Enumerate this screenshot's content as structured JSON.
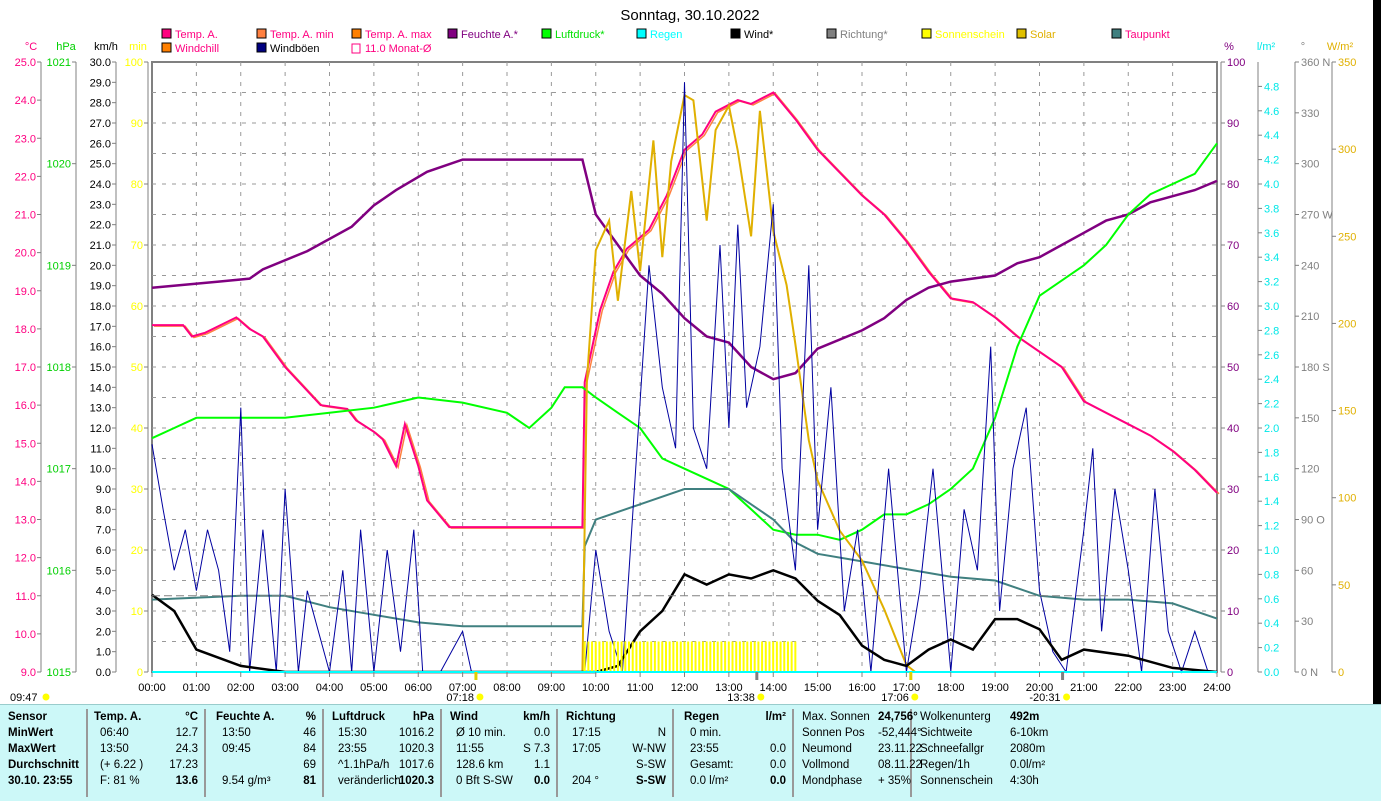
{
  "title": "Sonntag, 30.10.2022",
  "legend": [
    {
      "label": "Temp. A.",
      "color": "#ff0080",
      "text": "#ff0080"
    },
    {
      "label": "Temp. A. min",
      "color": "#ff8040",
      "text": "#ff0080"
    },
    {
      "label": "Temp. A. max",
      "color": "#ff8000",
      "text": "#ff0080"
    },
    {
      "label": "Feuchte A.*",
      "color": "#800080",
      "text": "#800080"
    },
    {
      "label": "Luftdruck*",
      "color": "#00ff00",
      "text": "#00e000"
    },
    {
      "label": "Regen",
      "color": "#00ffff",
      "text": "#00ffff"
    },
    {
      "label": "Wind*",
      "color": "#000000",
      "text": "#000000"
    },
    {
      "label": "Richtung*",
      "color": "#808080",
      "text": "#808080"
    },
    {
      "label": "Sonnenschein",
      "color": "#ffff00",
      "text": "#ffff00"
    },
    {
      "label": "Solar",
      "color": "#e0c000",
      "text": "#e0b000"
    },
    {
      "label": "Taupunkt",
      "color": "#408080",
      "text": "#ff0080"
    },
    {
      "label": "Windchill",
      "color": "#ff8000",
      "text": "#ff0080"
    },
    {
      "label": "Windböen",
      "color": "#000080",
      "text": "#000000"
    },
    {
      "label": "11.0 Monat-Ø",
      "color": "#ff0080",
      "text": "#ff0080"
    }
  ],
  "axes": {
    "temp": {
      "unit": "°C",
      "ticks": [
        "9.0",
        "10.0",
        "11.0",
        "12.0",
        "13.0",
        "14.0",
        "15.0",
        "16.0",
        "17.0",
        "18.0",
        "19.0",
        "20.0",
        "21.0",
        "22.0",
        "23.0",
        "24.0",
        "25.0"
      ],
      "color": "#ff0080"
    },
    "press": {
      "unit": "hPa",
      "ticks": [
        "1015",
        "1016",
        "1017",
        "1018",
        "1019",
        "1020",
        "1021"
      ],
      "color": "#00d000"
    },
    "wind": {
      "unit": "km/h",
      "ticks": [
        "0.0",
        "1.0",
        "2.0",
        "3.0",
        "4.0",
        "5.0",
        "6.0",
        "7.0",
        "8.0",
        "9.0",
        "10.0",
        "11.0",
        "12.0",
        "13.0",
        "14.0",
        "15.0",
        "16.0",
        "17.0",
        "18.0",
        "19.0",
        "20.0",
        "21.0",
        "22.0",
        "23.0",
        "24.0",
        "25.0",
        "26.0",
        "27.0",
        "28.0",
        "29.0",
        "30.0"
      ],
      "color": "#000000"
    },
    "min": {
      "unit": "min",
      "ticks": [
        "0",
        "10",
        "20",
        "30",
        "40",
        "50",
        "60",
        "70",
        "80",
        "90",
        "100"
      ],
      "color": "#ffff00"
    },
    "hum": {
      "unit": "%",
      "ticks": [
        "0",
        "10",
        "20",
        "30",
        "40",
        "50",
        "60",
        "70",
        "80",
        "90",
        "100"
      ],
      "color": "#800080"
    },
    "rain": {
      "unit": "l/m²",
      "ticks": [
        "0.0",
        "0.2",
        "0.4",
        "0.6",
        "0.8",
        "1.0",
        "1.2",
        "1.4",
        "1.6",
        "1.8",
        "2.0",
        "2.2",
        "2.4",
        "2.6",
        "2.8",
        "3.0",
        "3.2",
        "3.4",
        "3.6",
        "3.8",
        "4.0",
        "4.2",
        "4.4",
        "4.6",
        "4.8"
      ],
      "color": "#00e8e8"
    },
    "dir": {
      "unit": "°",
      "ticks": [
        "0    N",
        "30",
        "60",
        "90  O",
        "120",
        "150",
        "180 S",
        "210",
        "240",
        "270 W",
        "300",
        "330",
        "360 N"
      ],
      "color": "#808080"
    },
    "solar": {
      "unit": "W/m²",
      "ticks": [
        "0",
        "50",
        "100",
        "150",
        "200",
        "250",
        "300",
        "350"
      ],
      "color": "#e0b000"
    }
  },
  "x_ticks": [
    "00:00",
    "01:00",
    "02:00",
    "03:00",
    "04:00",
    "05:00",
    "06:00",
    "07:00",
    "08:00",
    "09:00",
    "10:00",
    "11:00",
    "12:00",
    "13:00",
    "14:00",
    "15:00",
    "16:00",
    "17:00",
    "18:00",
    "19:00",
    "20:00",
    "21:00",
    "22:00",
    "23:00",
    "24:00"
  ],
  "markers": [
    {
      "label": "09:47",
      "h": -2.6
    },
    {
      "label": "07:18",
      "h": 7.3
    },
    {
      "label": "13:38",
      "h": 13.63
    },
    {
      "label": "17:06",
      "h": 17.1
    },
    {
      "label": "-20:31",
      "h": 20.52
    }
  ],
  "chart_data": {
    "type": "line",
    "title": "Sonntag, 30.10.2022",
    "xlabel": "",
    "xlim": [
      0,
      24
    ],
    "series": [
      {
        "name": "Temp. A.",
        "axis": "temp",
        "ylim": [
          9,
          25
        ],
        "color": "#ff0080",
        "x": [
          0,
          0.7,
          0.9,
          1.2,
          1.9,
          2.2,
          2.5,
          3,
          3.4,
          3.8,
          4.4,
          4.6,
          5,
          5.2,
          5.5,
          5.7,
          6,
          6.2,
          6.7,
          9.7,
          9.75,
          10.1,
          10.4,
          10.7,
          11.2,
          11.6,
          12,
          12.4,
          12.7,
          13.2,
          13.5,
          14,
          14.5,
          15,
          15.5,
          16,
          16.5,
          17,
          17.5,
          18,
          18.5,
          19,
          19.5,
          20,
          20.5,
          21,
          21.5,
          22,
          22.5,
          23,
          23.5,
          24
        ],
        "y": [
          18.1,
          18.1,
          17.8,
          17.9,
          18.3,
          18,
          17.8,
          17,
          16.5,
          16,
          15.9,
          15.6,
          15.3,
          15.1,
          14.4,
          15.5,
          14.4,
          13.5,
          12.8,
          12.8,
          16.6,
          18.5,
          19.5,
          20.1,
          20.6,
          21.5,
          22.7,
          23.1,
          23.7,
          24,
          23.9,
          24.2,
          23.5,
          22.7,
          22.1,
          21.5,
          21,
          20.3,
          19.5,
          18.8,
          18.7,
          18.3,
          17.8,
          17.4,
          17,
          16.1,
          15.8,
          15.5,
          15.2,
          14.8,
          14.3,
          13.7
        ]
      },
      {
        "name": "Feuchte A.*",
        "axis": "hum",
        "ylim": [
          0,
          100
        ],
        "color": "#800080",
        "x": [
          0,
          1.5,
          2.2,
          2.5,
          3.5,
          4.5,
          5,
          5.5,
          6.2,
          7,
          9.7,
          10,
          10.5,
          11,
          11.5,
          12,
          12.5,
          13,
          13.5,
          14,
          14.5,
          15,
          16,
          16.5,
          17,
          17.5,
          18,
          19,
          19.5,
          20,
          20.5,
          21,
          21.5,
          22,
          22.5,
          23,
          23.5,
          24
        ],
        "y": [
          63,
          64,
          64.5,
          66,
          69,
          73,
          76.5,
          79,
          82,
          84,
          84,
          75,
          70,
          65,
          62,
          58,
          55,
          54,
          50,
          48,
          49,
          53,
          56,
          58,
          61,
          63,
          64,
          65,
          67,
          68,
          70,
          72,
          74,
          75,
          77,
          78,
          79,
          80.5
        ]
      },
      {
        "name": "Luftdruck*",
        "axis": "press",
        "ylim": [
          1015,
          1021
        ],
        "color": "#00ff00",
        "x": [
          0,
          0.5,
          1,
          2,
          3,
          4,
          5,
          5.5,
          6,
          7,
          8,
          8.5,
          9,
          9.3,
          9.7,
          10,
          10.5,
          11,
          11.5,
          12,
          12.5,
          13,
          13.5,
          14,
          14.5,
          15,
          15.5,
          16,
          16.5,
          17,
          17.5,
          18,
          18.5,
          19,
          19.5,
          20,
          20.5,
          21,
          21.5,
          22,
          22.5,
          23,
          23.5,
          24
        ],
        "y": [
          1017.3,
          1017.4,
          1017.5,
          1017.5,
          1017.5,
          1017.55,
          1017.6,
          1017.65,
          1017.7,
          1017.65,
          1017.55,
          1017.4,
          1017.6,
          1017.8,
          1017.8,
          1017.7,
          1017.55,
          1017.4,
          1017.1,
          1017,
          1016.9,
          1016.8,
          1016.6,
          1016.4,
          1016.35,
          1016.35,
          1016.3,
          1016.4,
          1016.55,
          1016.55,
          1016.65,
          1016.8,
          1017,
          1017.5,
          1018.2,
          1018.7,
          1018.85,
          1019,
          1019.2,
          1019.5,
          1019.7,
          1019.8,
          1019.9,
          1020.2
        ]
      },
      {
        "name": "Taupunkt",
        "axis": "temp",
        "ylim": [
          9,
          25
        ],
        "color": "#408080",
        "x": [
          0,
          2,
          3,
          4,
          5,
          6,
          7,
          9.7,
          9.75,
          10,
          11,
          12,
          13,
          13.5,
          14,
          14.5,
          15,
          16,
          17,
          18,
          19,
          20,
          21,
          22,
          23,
          24
        ],
        "y": [
          10.9,
          11,
          11,
          10.7,
          10.5,
          10.3,
          10.2,
          10.2,
          12.3,
          13,
          13.4,
          13.8,
          13.8,
          13.4,
          13,
          12.4,
          12.1,
          11.9,
          11.7,
          11.5,
          11.4,
          11,
          10.9,
          10.9,
          10.8,
          10.4
        ]
      },
      {
        "name": "Solar",
        "axis": "solar",
        "ylim": [
          0,
          350
        ],
        "color": "#e0b000",
        "x": [
          9.7,
          9.8,
          10,
          10.3,
          10.5,
          10.8,
          11,
          11.3,
          11.5,
          11.7,
          12,
          12.2,
          12.5,
          12.7,
          13,
          13.2,
          13.5,
          13.7,
          14,
          14.3,
          14.5,
          14.8,
          15,
          15.5,
          16,
          16.5,
          17,
          17.2
        ],
        "y": [
          0,
          167,
          242,
          259,
          213,
          276,
          230,
          305,
          238,
          293,
          331,
          328,
          259,
          311,
          325,
          299,
          250,
          322,
          253,
          222,
          188,
          133,
          110,
          81,
          64,
          36,
          4,
          0
        ]
      },
      {
        "name": "Windböen",
        "axis": "wind",
        "ylim": [
          0,
          30
        ],
        "color": "#0000a0",
        "x": [
          0,
          0.25,
          0.5,
          0.75,
          1,
          1.25,
          1.5,
          1.75,
          2,
          2.2,
          2.5,
          2.8,
          3,
          3.3,
          3.5,
          4,
          4.3,
          4.5,
          4.7,
          5,
          5.3,
          5.6,
          5.9,
          6.1,
          6.5,
          7,
          7.2,
          9.75,
          10,
          10.3,
          10.6,
          10.9,
          11.2,
          11.5,
          11.8,
          12,
          12.2,
          12.5,
          12.8,
          13,
          13.2,
          13.4,
          13.7,
          14,
          14.2,
          14.5,
          14.8,
          15,
          15.3,
          15.6,
          15.9,
          16.2,
          16.6,
          17,
          17.3,
          17.6,
          18,
          18.3,
          18.6,
          18.9,
          19.1,
          19.4,
          19.7,
          20,
          20.3,
          20.6,
          21,
          21.2,
          21.4,
          21.7,
          22,
          22.3,
          22.6,
          22.9,
          23.2,
          23.5,
          23.8,
          24
        ],
        "y": [
          11.2,
          8,
          5,
          7,
          4,
          7,
          5,
          1,
          13,
          0,
          7,
          0,
          9,
          0,
          4,
          0,
          5,
          0,
          7,
          0,
          6,
          1,
          7,
          0,
          0,
          2,
          0,
          0,
          6,
          2,
          0,
          10,
          20,
          14,
          11,
          29,
          12,
          10,
          21,
          12,
          22,
          13,
          16,
          23,
          10,
          5,
          20,
          7,
          14,
          3,
          7,
          0,
          10,
          0,
          4,
          10,
          0,
          8,
          5,
          16,
          3,
          10,
          13,
          4,
          1,
          0,
          7,
          11,
          2,
          9,
          5,
          0,
          9,
          2,
          0,
          2,
          0,
          0
        ]
      },
      {
        "name": "Wind*",
        "axis": "wind",
        "ylim": [
          0,
          30
        ],
        "color": "#000000",
        "x": [
          0,
          0.5,
          1,
          2,
          3,
          5,
          9.7,
          10,
          10.5,
          11,
          11.5,
          12,
          12.5,
          13,
          13.5,
          14,
          14.5,
          15,
          15.5,
          16,
          16.5,
          17,
          17.5,
          18,
          18.5,
          19,
          19.5,
          20,
          20.5,
          21,
          22,
          23,
          24
        ],
        "y": [
          3.8,
          3,
          1.1,
          0.3,
          0,
          0,
          0,
          0,
          0.3,
          2,
          3,
          4.8,
          4.3,
          4.8,
          4.6,
          5,
          4.6,
          3.5,
          2.8,
          1.3,
          0.6,
          0.3,
          1.1,
          1.6,
          1.1,
          2.6,
          2.6,
          2.1,
          0.6,
          1.1,
          0.8,
          0.2,
          0
        ]
      },
      {
        "name": "Sonnenschein",
        "axis": "min",
        "ylim": [
          0,
          100
        ],
        "type": "bar",
        "color": "#ffff00",
        "x_range": [
          9.75,
          14.5
        ],
        "value": 5
      },
      {
        "name": "11.0 Monat-Ø",
        "axis": "temp",
        "type": "hline",
        "value": 11.0,
        "color": "#808080"
      }
    ]
  },
  "table": {
    "cols": [
      {
        "rows": [
          [
            "Sensor",
            ""
          ],
          [
            "MinWert",
            ""
          ],
          [
            "MaxWert",
            ""
          ],
          [
            "Durchschnitt",
            ""
          ],
          [
            "30.10. 23:55",
            ""
          ]
        ],
        "bold": [
          0,
          1,
          2,
          3,
          4
        ]
      },
      {
        "rows": [
          [
            "Temp. A.",
            "°C"
          ],
          [
            "06:40",
            "12.7"
          ],
          [
            "13:50",
            "24.3"
          ],
          [
            "(+ 6.22 )",
            "17.23"
          ],
          [
            "F: 81 %",
            "13.6"
          ]
        ],
        "bold": [
          0
        ],
        "boldv": [
          4
        ]
      },
      {
        "rows": [
          [
            "Feuchte A.",
            "%"
          ],
          [
            "13:50",
            "46"
          ],
          [
            "09:45",
            "84"
          ],
          [
            "",
            "69"
          ],
          [
            "9.54 g/m³",
            "81"
          ]
        ],
        "bold": [
          0
        ],
        "boldv": [
          4
        ]
      },
      {
        "rows": [
          [
            "Luftdruck",
            "hPa"
          ],
          [
            "15:30",
            "1016.2"
          ],
          [
            "23:55",
            "1020.3"
          ],
          [
            "^1.1hPa/h",
            "1017.6"
          ],
          [
            "veränderlich",
            "↑1020.3"
          ]
        ],
        "bold": [
          0
        ],
        "boldv": [
          4
        ]
      },
      {
        "rows": [
          [
            "Wind",
            "km/h"
          ],
          [
            "Ø 10 min.",
            "0.0"
          ],
          [
            "11:55",
            "S 7.3"
          ],
          [
            "128.6 km",
            "1.1"
          ],
          [
            "0 Bft S-SW",
            "0.0"
          ]
        ],
        "bold": [
          0
        ],
        "boldv": [
          4
        ]
      },
      {
        "rows": [
          [
            "Richtung",
            ""
          ],
          [
            "17:15",
            "N"
          ],
          [
            "17:05",
            "W-NW"
          ],
          [
            "",
            "S-SW"
          ],
          [
            "204 °",
            "S-SW"
          ]
        ],
        "bold": [
          0
        ],
        "boldv": [
          4
        ]
      },
      {
        "rows": [
          [
            "Regen",
            "l/m²"
          ],
          [
            "0 min.",
            ""
          ],
          [
            "23:55",
            "0.0"
          ],
          [
            "Gesamt:",
            "0.0"
          ],
          [
            "0.0 l/m²",
            "0.0"
          ]
        ],
        "bold": [
          0
        ],
        "boldv": [
          4
        ]
      },
      {
        "rows": [
          [
            "Max. Sonnen",
            "24,756°"
          ],
          [
            "Sonnen Pos",
            "-52,444°"
          ],
          [
            "Neumond",
            "23.11.22"
          ],
          [
            "Vollmond",
            "08.11.22"
          ],
          [
            "Mondphase",
            "+ 35%"
          ]
        ],
        "bold": []
      },
      {
        "rows": [
          [
            "Wolkenunterg",
            "492m"
          ],
          [
            "Sichtweite",
            "6-10km"
          ],
          [
            "Schneefallgr",
            "2080m"
          ],
          [
            "Regen/1h",
            "0.0l/m²"
          ],
          [
            "Sonnenschein",
            "4:30h"
          ]
        ],
        "bold": []
      }
    ]
  }
}
